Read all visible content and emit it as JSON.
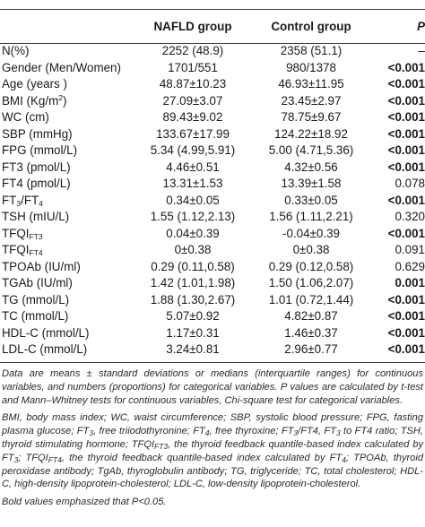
{
  "table": {
    "headers": [
      "",
      "NAFLD group",
      "Control group",
      "P"
    ],
    "rows": [
      {
        "label": "N(%)",
        "nafld": "2252 (48.9)",
        "control": "2358 (51.1)",
        "p": "–",
        "bold": false
      },
      {
        "label": "Gender (Men/Women)",
        "nafld": "1701/551",
        "control": "980/1378",
        "p": "<0.001",
        "bold": true
      },
      {
        "label": "Age (years )",
        "nafld": "48.87±10.23",
        "control": "46.93±11.95",
        "p": "<0.001",
        "bold": true
      },
      {
        "label": "BMI (Kg/m",
        "label_sup": "2",
        "label_tail": ")",
        "nafld": "27.09±3.07",
        "control": "23.45±2.97",
        "p": "<0.001",
        "bold": true
      },
      {
        "label": "WC (cm)",
        "nafld": "89.43±9.02",
        "control": "78.75±9.67",
        "p": "<0.001",
        "bold": true
      },
      {
        "label": "SBP (mmHg)",
        "nafld": "133.67±17.99",
        "control": "124.22±18.92",
        "p": "<0.001",
        "bold": true
      },
      {
        "label": "FPG (mmol/L)",
        "nafld": "5.34 (4.99,5.91)",
        "control": "5.00 (4.71,5.36)",
        "p": "<0.001",
        "bold": true
      },
      {
        "label": "FT3 (pmol/L)",
        "nafld": "4.46±0.51",
        "control": "4.32±0.56",
        "p": "<0.001",
        "bold": true
      },
      {
        "label": "FT4 (pmol/L)",
        "nafld": "13.31±1.53",
        "control": "13.39±1.58",
        "p": "0.078",
        "bold": false
      },
      {
        "label": "FT",
        "label_sub": "3",
        "label_mid": "/FT",
        "label_sub2": "4",
        "nafld": "0.34±0.05",
        "control": "0.33±0.05",
        "p": "<0.001",
        "bold": true
      },
      {
        "label": "TSH (mIU/L)",
        "nafld": "1.55 (1.12,2.13)",
        "control": "1.56 (1.11,2.21)",
        "p": "0.320",
        "bold": false
      },
      {
        "label": "TFQI",
        "label_sub": "FT3",
        "nafld": "0.04±0.39",
        "control": "-0.04±0.39",
        "p": "<0.001",
        "bold": true
      },
      {
        "label": "TFQI",
        "label_sub": "FT4",
        "nafld": "0±0.38",
        "control": "0±0.38",
        "p": "0.091",
        "bold": false
      },
      {
        "label": "TPOAb (IU/ml)",
        "nafld": "0.29 (0.11,0.58)",
        "control": "0.29 (0.12,0.58)",
        "p": "0.629",
        "bold": false
      },
      {
        "label": "TGAb (IU/ml)",
        "nafld": "1.42 (1.01,1.98)",
        "control": "1.50 (1.06,2.07)",
        "p": "0.001",
        "bold": true
      },
      {
        "label": "TG (mmol/L)",
        "nafld": "1.88 (1.30,2.67)",
        "control": "1.01 (0.72,1.44)",
        "p": "<0.001",
        "bold": true
      },
      {
        "label": "TC (mmol/L)",
        "nafld": "5.07±0.92",
        "control": "4.82±0.87",
        "p": "<0.001",
        "bold": true
      },
      {
        "label": "HDL-C (mmol/L)",
        "nafld": "1.17±0.31",
        "control": "1.46±0.37",
        "p": "<0.001",
        "bold": true
      },
      {
        "label": "LDL-C (mmol/L)",
        "nafld": "3.24±0.81",
        "control": "2.96±0.77",
        "p": "<0.001",
        "bold": true
      }
    ]
  },
  "notes": {
    "n1": "Data are means ± standard deviations or medians (interquartile ranges) for continuous variables, and numbers (proportions) for categorical variables. P values are calculated by t-test and Mann–Whitney tests for continuous variables, Chi-square test for categorical variables.",
    "n2_a": "BMI, body mass index; WC, waist circumference; SBP, systolic blood pressure; FPG, fasting plasma glucose; FT",
    "n2_b": ", free triiodothyronine; FT",
    "n2_c": ", free thyroxine; FT",
    "n2_d": "/FT4, FT",
    "n2_e": " to FT4 ratio; TSH, thyroid stimulating hormone; TFQI",
    "n2_f": ", the thyroid feedback quantile-based index calculated by FT",
    "n2_g": "; TFQI",
    "n2_h": ", the thyroid feedback quantile-based index calculated by FT",
    "n2_i": "; TPOAb, thyroid peroxidase antibody; TgAb, thyroglobulin antibody; TG, triglyceride; TC, total cholesterol; HDL-C, high-density lipoprotein-cholesterol; LDL-C, low-density lipoprotein-cholesterol.",
    "sub3": "3",
    "sub4": "4",
    "subFT3": "FT3",
    "subFT4": "FT4",
    "n3": "Bold values emphasized that P<0.05."
  }
}
